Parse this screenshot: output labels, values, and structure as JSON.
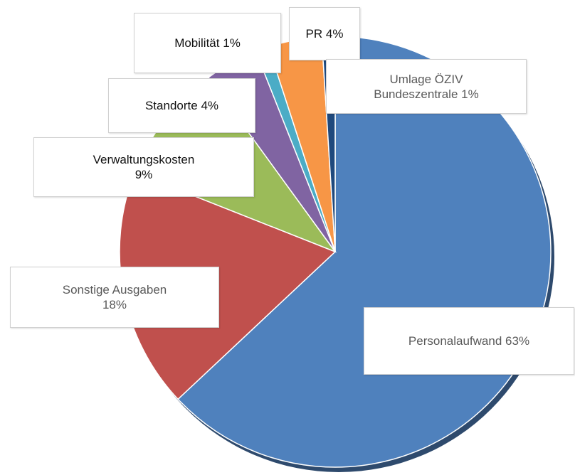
{
  "chart_data": {
    "type": "pie",
    "categories": [
      "Personalaufwand",
      "Sonstige Ausgaben",
      "Verwaltungskosten",
      "Standorte",
      "Mobilität",
      "PR",
      "Umlage ÖZIV Bundeszentrale"
    ],
    "values": [
      63,
      18,
      9,
      4,
      1,
      4,
      1
    ],
    "value_labels": [
      "63%",
      "18%",
      "9%",
      "4%",
      "1%",
      "4%",
      "1%"
    ],
    "colors": [
      "#4f81bd",
      "#c0504d",
      "#9bbb59",
      "#8064a2",
      "#4bacc6",
      "#f79646",
      "#1f497d"
    ]
  }
}
